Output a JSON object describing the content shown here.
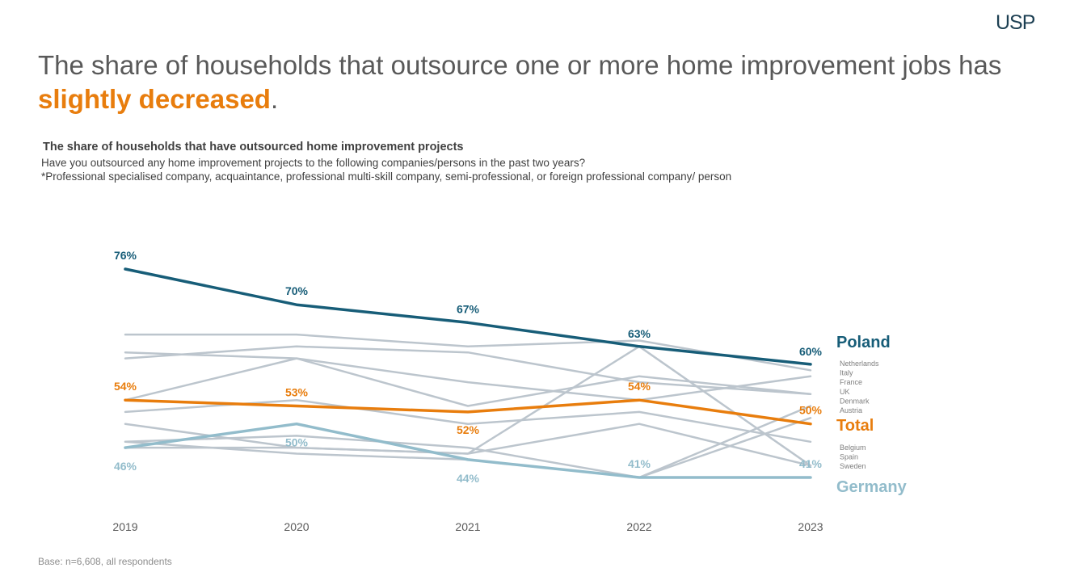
{
  "brand": {
    "logo_text": "USP"
  },
  "headline": {
    "prefix": "The share of households that outsource one or more home improvement jobs has ",
    "highlight": "slightly decreased",
    "suffix": "."
  },
  "colors": {
    "poland": "#175d78",
    "total": "#e87d0d",
    "germany": "#92bccb",
    "other": "#bcc5cd",
    "text": "#595959"
  },
  "base_note": "Base: n=6,608, all respondents",
  "chart_data": {
    "type": "line",
    "title": "The share of households that have outsourced home improvement projects",
    "subtitle": "Have you outsourced any home improvement projects to the following companies/persons in the past two years?",
    "note": "*Professional specialised company, acquaintance, professional multi-skill company, semi-professional, or foreign professional company/ person",
    "categories": [
      "2019",
      "2020",
      "2021",
      "2022",
      "2023"
    ],
    "ylim": [
      38,
      80
    ],
    "series": [
      {
        "name": "Poland",
        "role": "highlight",
        "values": [
          76,
          70,
          67,
          63,
          60
        ],
        "labels": [
          "76%",
          "70%",
          "67%",
          "63%",
          "60%"
        ]
      },
      {
        "name": "Total",
        "role": "total",
        "values": [
          54,
          53,
          52,
          54,
          50
        ],
        "labels": [
          "54%",
          "53%",
          "52%",
          "54%",
          "50%"
        ]
      },
      {
        "name": "Germany",
        "role": "germany",
        "values": [
          46,
          50,
          44,
          41,
          41
        ],
        "labels": [
          "46%",
          "50%",
          "44%",
          "41%",
          "41%"
        ]
      },
      {
        "name": "Netherlands",
        "role": "other",
        "values": [
          65,
          65,
          63,
          64,
          59
        ]
      },
      {
        "name": "Italy",
        "role": "other",
        "values": [
          62,
          61,
          57,
          54,
          58
        ]
      },
      {
        "name": "France",
        "role": "other",
        "values": [
          61,
          63,
          62,
          57,
          55
        ]
      },
      {
        "name": "UK",
        "role": "other",
        "values": [
          54,
          61,
          53,
          58,
          55
        ]
      },
      {
        "name": "Denmark",
        "role": "other",
        "values": [
          52,
          54,
          50,
          52,
          47
        ]
      },
      {
        "name": "Austria",
        "role": "other",
        "values": [
          50,
          46,
          45,
          50,
          43
        ]
      },
      {
        "name": "Belgium",
        "role": "other",
        "values": [
          47,
          48,
          46,
          41,
          53
        ]
      },
      {
        "name": "Spain",
        "role": "other",
        "values": [
          47,
          45,
          44,
          41,
          51
        ]
      },
      {
        "name": "Sweden",
        "role": "other",
        "values": [
          46,
          46,
          45,
          63,
          43
        ]
      }
    ],
    "end_labels": {
      "major": [
        "Poland",
        "Total",
        "Germany"
      ],
      "group_upper": [
        "Netherlands",
        "Italy",
        "France",
        "UK",
        "Denmark",
        "Austria"
      ],
      "group_lower": [
        "Belgium",
        "Spain",
        "Sweden"
      ]
    },
    "grid": false,
    "legend": "none"
  }
}
